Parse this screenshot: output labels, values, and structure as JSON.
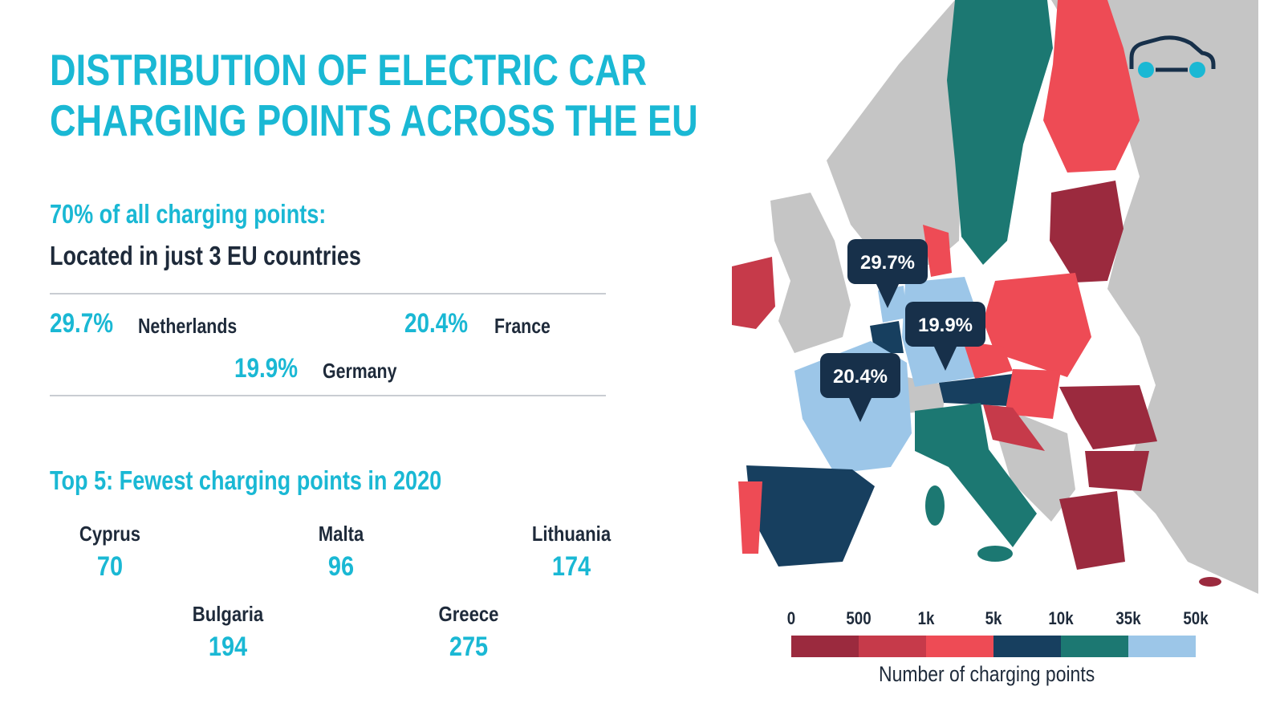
{
  "title": {
    "line1": "DISTRIBUTION OF ELECTRIC CAR",
    "line2": "CHARGING POINTS ACROSS THE EU"
  },
  "summary": {
    "heading": "70% of all charging points:",
    "subheading": "Located in just 3 EU countries",
    "countries": [
      {
        "pct": "29.7%",
        "name": "Netherlands"
      },
      {
        "pct": "20.4%",
        "name": "France"
      },
      {
        "pct": "19.9%",
        "name": "Germany"
      }
    ]
  },
  "fewest": {
    "heading": "Top 5: Fewest charging points in 2020",
    "items": [
      {
        "name": "Cyprus",
        "value": "70"
      },
      {
        "name": "Malta",
        "value": "96"
      },
      {
        "name": "Lithuania",
        "value": "174"
      },
      {
        "name": "Bulgaria",
        "value": "194"
      },
      {
        "name": "Greece",
        "value": "275"
      }
    ]
  },
  "map": {
    "callouts": [
      "29.7%",
      "19.9%",
      "20.4%"
    ],
    "icon": "car-icon"
  },
  "legend": {
    "title": "Number of charging points",
    "labels": [
      "0",
      "500",
      "1k",
      "5k",
      "10k",
      "35k",
      "50k"
    ],
    "colors": [
      "#9b2a3e",
      "#c63a4a",
      "#ee4b55",
      "#173f5f",
      "#1c7872",
      "#9cc6e8"
    ]
  },
  "colors": {
    "accent": "#1ab8d4",
    "text": "#1e2a3a",
    "land": "#c5c5c5",
    "callout": "#17304a"
  }
}
